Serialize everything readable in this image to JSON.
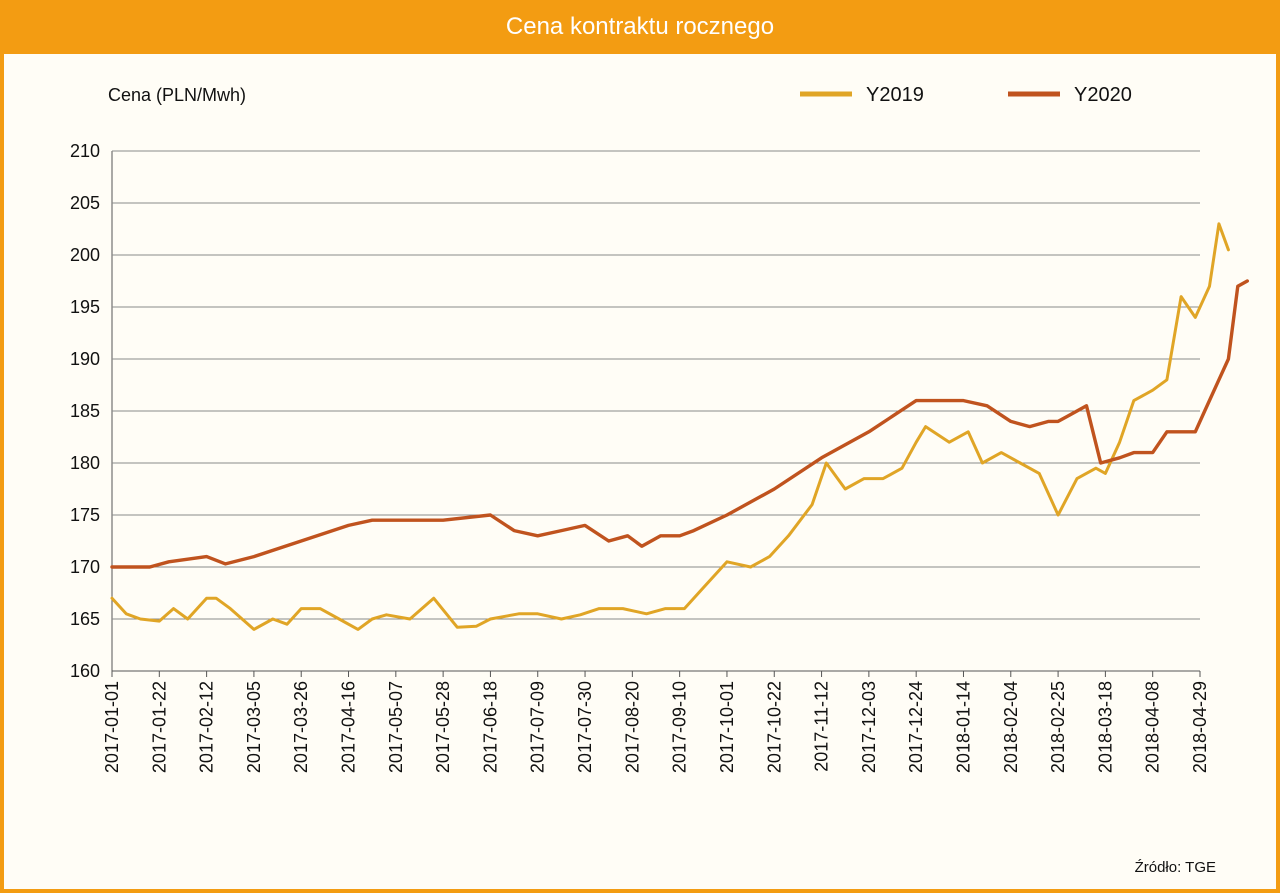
{
  "chart_data": {
    "type": "line",
    "title": "Cena kontraktu  rocznego",
    "ylabel": "Cena (PLN/Mwh)",
    "xlabel": "",
    "ylim": [
      160,
      210
    ],
    "yticks": [
      160,
      165,
      170,
      175,
      180,
      185,
      190,
      195,
      200,
      205,
      210
    ],
    "grid": true,
    "legend_position": "top-right",
    "source": "Źródło: TGE",
    "categories": [
      "2017-01-01",
      "2017-01-22",
      "2017-02-12",
      "2017-03-05",
      "2017-03-26",
      "2017-04-16",
      "2017-05-07",
      "2017-05-28",
      "2017-06-18",
      "2017-07-09",
      "2017-07-30",
      "2017-08-20",
      "2017-09-10",
      "2017-10-01",
      "2017-10-22",
      "2017-11-12",
      "2017-12-03",
      "2017-12-24",
      "2018-01-14",
      "2018-02-04",
      "2018-02-25",
      "2018-03-18",
      "2018-04-08",
      "2018-04-29"
    ],
    "series": [
      {
        "name": "Y2019",
        "color": "#e0a526",
        "x": [
          0,
          0.3,
          0.6,
          1.0,
          1.3,
          1.6,
          2.0,
          2.2,
          2.5,
          3.0,
          3.4,
          3.7,
          4.0,
          4.4,
          4.8,
          5.2,
          5.5,
          5.8,
          6.3,
          6.8,
          7.3,
          7.7,
          8.0,
          8.6,
          9.0,
          9.5,
          9.9,
          10.3,
          10.8,
          11.3,
          11.7,
          12.1,
          12.5,
          13.0,
          13.5,
          13.9,
          14.3,
          14.8,
          15.1,
          15.5,
          15.9,
          16.3,
          16.7,
          17.0,
          17.2,
          17.7,
          18.1,
          18.4,
          18.8,
          19.2,
          19.6,
          20.0,
          20.4,
          20.8,
          21.0,
          21.3,
          21.6,
          22.0,
          22.3,
          22.6,
          22.9,
          23.2,
          23.4,
          23.6
        ],
        "y": [
          167,
          165.5,
          165,
          164.8,
          166,
          165,
          167,
          167,
          166,
          164,
          165,
          164.5,
          166,
          166,
          165,
          164,
          165,
          165.4,
          165,
          167,
          164.2,
          164.3,
          165,
          165.5,
          165.5,
          165,
          165.4,
          166,
          166,
          165.5,
          166,
          166,
          168,
          170.5,
          170,
          171,
          173,
          176,
          180,
          177.5,
          178.5,
          178.5,
          179.5,
          182,
          183.5,
          182,
          183,
          180,
          181,
          180,
          179,
          175,
          178.5,
          179.5,
          179,
          182,
          186,
          187,
          188,
          196,
          194,
          197,
          203,
          200.5
        ]
      },
      {
        "name": "Y2020",
        "color": "#c0531e",
        "x": [
          0,
          0.8,
          1.2,
          2.0,
          2.4,
          3.0,
          4.0,
          5.0,
          5.5,
          6.0,
          7.0,
          8.0,
          8.5,
          9.0,
          9.5,
          10.0,
          10.5,
          10.9,
          11.2,
          11.6,
          12.0,
          12.3,
          13.0,
          14.0,
          15.0,
          16.0,
          16.5,
          17.0,
          17.4,
          18.0,
          18.5,
          19.0,
          19.4,
          19.8,
          20.0,
          20.2,
          20.6,
          20.9,
          21.3,
          21.6,
          22.0,
          22.3,
          22.5,
          22.9,
          23.1,
          23.4,
          23.6,
          23.8,
          24.0
        ],
        "y": [
          170,
          170,
          170.5,
          171,
          170.3,
          171,
          172.5,
          174,
          174.5,
          174.5,
          174.5,
          175,
          173.5,
          173,
          173.5,
          174,
          172.5,
          173,
          172,
          173,
          173,
          173.5,
          175,
          177.5,
          180.5,
          183,
          184.5,
          186,
          186,
          186,
          185.5,
          184,
          183.5,
          184,
          184,
          184.5,
          185.5,
          180,
          180.5,
          181,
          181,
          183,
          183,
          183,
          185,
          188,
          190,
          197,
          197.5
        ]
      }
    ]
  }
}
